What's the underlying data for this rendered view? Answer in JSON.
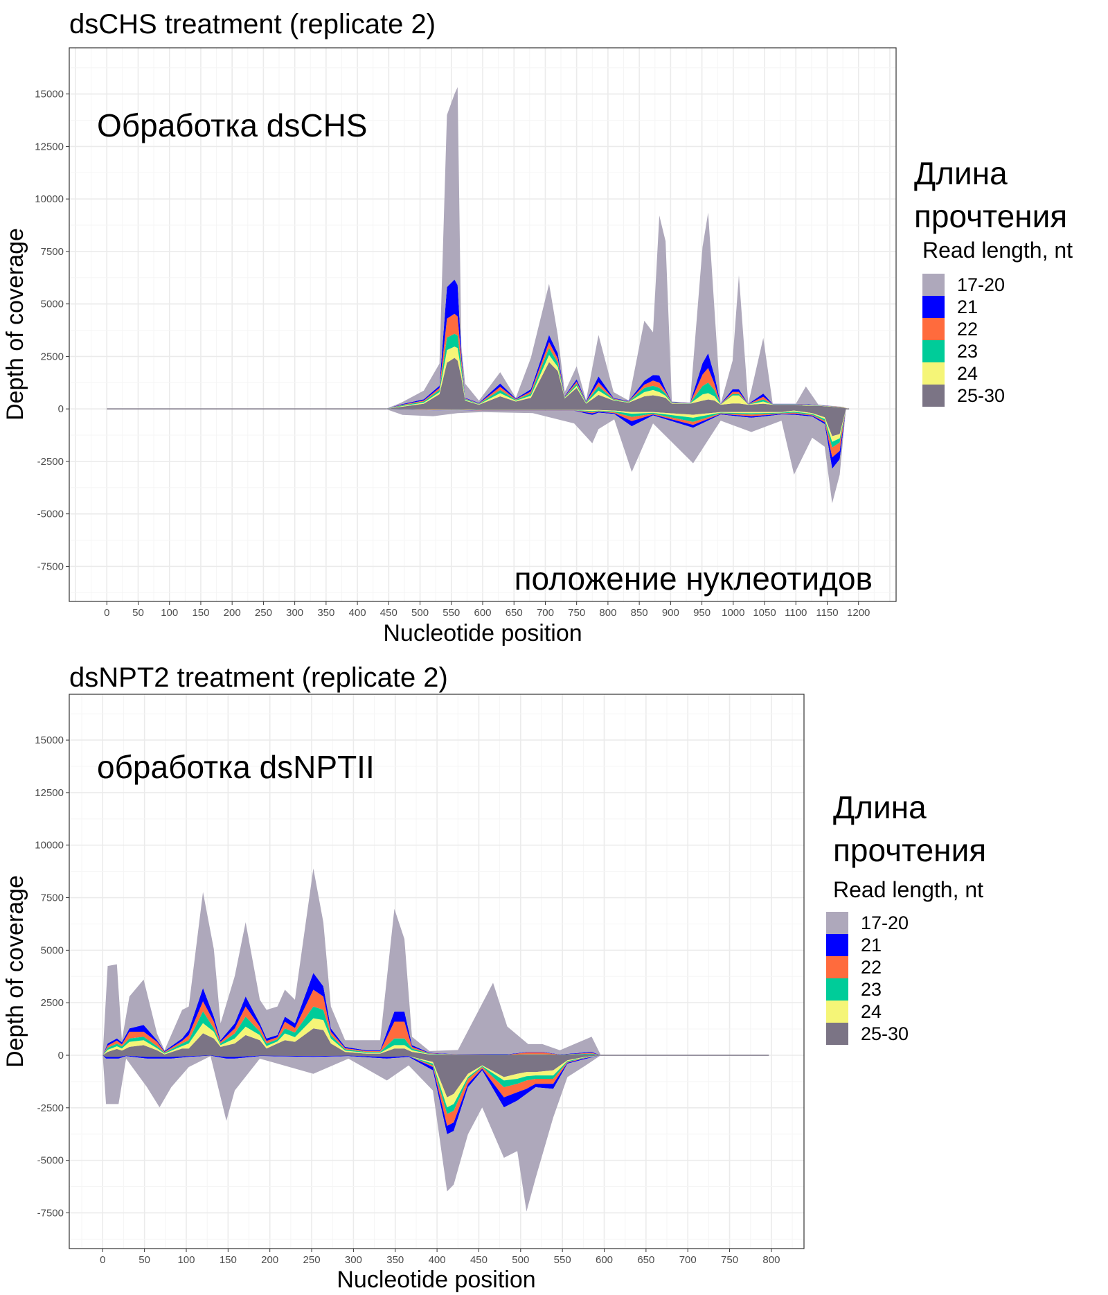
{
  "chart_data": [
    {
      "type": "area",
      "stacked": true,
      "title": "dsCHS treatment (replicate 2)",
      "annotation_top": "Обработка dsCHS",
      "annotation_bottom": "положение нуклеотидов",
      "xlabel": "Nucleotide position",
      "ylabel": "Depth of coverage",
      "xlim": [
        -60,
        1260
      ],
      "ylim": [
        -9170,
        17200
      ],
      "x_ticks": [
        "0",
        "50",
        "100",
        "150",
        "200",
        "250",
        "300",
        "350",
        "400",
        "450",
        "500",
        "550",
        "600",
        "650",
        "700",
        "750",
        "800",
        "850",
        "900",
        "950",
        "1000",
        "1050",
        "1100",
        "1150",
        "1200"
      ],
      "y_ticks": [
        "15000",
        "12500",
        "10000",
        "7500",
        "5000",
        "2500",
        "0",
        "-2500",
        "-5000",
        "-7500"
      ],
      "grid": true,
      "legend": {
        "title_ru_1": "Длина",
        "title_ru_2": "прочтения",
        "title": "Read length, nt",
        "position": "right",
        "entries": [
          "17-20",
          "21",
          "22",
          "23",
          "24",
          "25-30"
        ]
      },
      "columns": [
        "position",
        "17-20",
        "21",
        "22",
        "23",
        "24",
        "25-30"
      ],
      "plus_strand": [
        [
          0,
          0,
          0,
          0,
          0,
          0,
          0
        ],
        [
          445,
          0,
          0,
          0,
          0,
          0,
          0
        ],
        [
          470,
          80,
          30,
          30,
          30,
          30,
          100
        ],
        [
          506,
          410,
          60,
          50,
          50,
          50,
          250
        ],
        [
          531,
          1060,
          100,
          100,
          100,
          100,
          700
        ],
        [
          543,
          8200,
          1500,
          900,
          600,
          600,
          2200
        ],
        [
          555,
          8840,
          1630,
          950,
          610,
          540,
          2430
        ],
        [
          560,
          9430,
          1500,
          900,
          600,
          600,
          2300
        ],
        [
          566,
          300,
          300,
          300,
          300,
          300,
          1500
        ],
        [
          572,
          670,
          30,
          30,
          40,
          40,
          390
        ],
        [
          594,
          105,
          25,
          20,
          20,
          20,
          200
        ],
        [
          628,
          540,
          160,
          150,
          150,
          150,
          600
        ],
        [
          653,
          40,
          30,
          30,
          40,
          40,
          350
        ],
        [
          677,
          1490,
          110,
          100,
          100,
          100,
          530
        ],
        [
          706,
          2440,
          340,
          280,
          330,
          340,
          2230
        ],
        [
          720,
          850,
          250,
          200,
          200,
          200,
          1800
        ],
        [
          731,
          180,
          30,
          30,
          30,
          30,
          500
        ],
        [
          750,
          620,
          110,
          100,
          100,
          100,
          1000
        ],
        [
          765,
          30,
          30,
          30,
          30,
          30,
          250
        ],
        [
          785,
          1970,
          280,
          200,
          200,
          200,
          670
        ],
        [
          809,
          280,
          30,
          30,
          30,
          30,
          400
        ],
        [
          833,
          20,
          20,
          20,
          20,
          20,
          300
        ],
        [
          858,
          2860,
          190,
          150,
          200,
          200,
          600
        ],
        [
          872,
          2035,
          265,
          250,
          200,
          250,
          650
        ],
        [
          882,
          7610,
          350,
          250,
          200,
          200,
          600
        ],
        [
          892,
          7060,
          100,
          100,
          100,
          100,
          530
        ],
        [
          902,
          20,
          20,
          20,
          20,
          20,
          250
        ],
        [
          931,
          10,
          10,
          10,
          10,
          10,
          250
        ],
        [
          951,
          5540,
          540,
          550,
          400,
          300,
          390
        ],
        [
          960,
          6700,
          700,
          700,
          500,
          300,
          450
        ],
        [
          970,
          3140,
          400,
          300,
          300,
          200,
          400
        ],
        [
          980,
          10,
          10,
          10,
          10,
          10,
          200
        ],
        [
          999,
          1360,
          130,
          110,
          60,
          380,
          260
        ],
        [
          1009,
          5430,
          130,
          110,
          60,
          380,
          260
        ],
        [
          1024,
          10,
          10,
          10,
          10,
          10,
          200
        ],
        [
          1048,
          2650,
          150,
          130,
          100,
          100,
          250
        ],
        [
          1063,
          10,
          10,
          10,
          10,
          10,
          200
        ],
        [
          1100,
          10,
          10,
          10,
          10,
          10,
          200
        ],
        [
          1116,
          840,
          20,
          20,
          20,
          20,
          150
        ],
        [
          1136,
          10,
          10,
          10,
          10,
          10,
          150
        ],
        [
          1175,
          10,
          0,
          10,
          10,
          10,
          60
        ],
        [
          1185,
          0,
          0,
          0,
          0,
          0,
          0
        ]
      ],
      "minus_strand": [
        [
          0,
          0,
          0,
          0,
          0,
          0,
          0
        ],
        [
          445,
          0,
          0,
          0,
          0,
          0,
          0
        ],
        [
          472,
          255,
          5,
          5,
          5,
          5,
          10
        ],
        [
          521,
          280,
          10,
          20,
          10,
          10,
          20
        ],
        [
          560,
          140,
          10,
          10,
          10,
          10,
          20
        ],
        [
          600,
          60,
          10,
          10,
          10,
          10,
          50
        ],
        [
          680,
          110,
          10,
          10,
          10,
          10,
          50
        ],
        [
          746,
          600,
          10,
          10,
          10,
          10,
          50
        ],
        [
          775,
          1350,
          80,
          60,
          50,
          50,
          50
        ],
        [
          785,
          780,
          40,
          30,
          30,
          30,
          50
        ],
        [
          810,
          260,
          40,
          40,
          40,
          40,
          80
        ],
        [
          838,
          2170,
          250,
          200,
          150,
          80,
          150
        ],
        [
          872,
          380,
          40,
          40,
          40,
          40,
          150
        ],
        [
          936,
          1690,
          140,
          140,
          200,
          140,
          280
        ],
        [
          980,
          290,
          30,
          30,
          30,
          30,
          150
        ],
        [
          1029,
          680,
          70,
          80,
          60,
          60,
          150
        ],
        [
          1077,
          290,
          30,
          30,
          30,
          30,
          150
        ],
        [
          1097,
          2850,
          50,
          50,
          50,
          50,
          80
        ],
        [
          1126,
          1010,
          40,
          40,
          40,
          40,
          200
        ],
        [
          1146,
          1080,
          80,
          80,
          80,
          80,
          400
        ],
        [
          1158,
          1650,
          540,
          470,
          270,
          270,
          1300
        ],
        [
          1170,
          730,
          400,
          400,
          200,
          200,
          1200
        ],
        [
          1180,
          0,
          0,
          0,
          0,
          0,
          0
        ]
      ]
    },
    {
      "type": "area",
      "stacked": true,
      "title": "dsNPT2 treatment (replicate 2)",
      "annotation_top": "обработка dsNPTII",
      "xlabel": "Nucleotide position",
      "ylabel": "Depth of coverage",
      "xlim": [
        -40,
        839
      ],
      "ylim": [
        -9200,
        17180
      ],
      "x_ticks": [
        "0",
        "50",
        "100",
        "150",
        "200",
        "250",
        "300",
        "350",
        "400",
        "450",
        "500",
        "550",
        "600",
        "650",
        "700",
        "750",
        "800"
      ],
      "y_ticks": [
        "15000",
        "12500",
        "10000",
        "7500",
        "5000",
        "2500",
        "0",
        "-2500",
        "-5000",
        "-7500"
      ],
      "grid": true,
      "legend": {
        "title_ru_1": "Длина",
        "title_ru_2": "прочтения",
        "title": "Read length, nt",
        "position": "right",
        "entries": [
          "17-20",
          "21",
          "22",
          "23",
          "24",
          "25-30"
        ]
      },
      "columns": [
        "position",
        "17-20",
        "21",
        "22",
        "23",
        "24",
        "25-30"
      ],
      "plus_strand": [
        [
          0,
          0,
          0,
          0,
          0,
          0,
          0
        ],
        [
          6,
          3690,
          100,
          100,
          100,
          100,
          160
        ],
        [
          17,
          3530,
          100,
          150,
          120,
          130,
          300
        ],
        [
          23,
          100,
          100,
          100,
          100,
          100,
          220
        ],
        [
          32,
          1520,
          160,
          320,
          160,
          240,
          400
        ],
        [
          49,
          2160,
          320,
          240,
          160,
          240,
          480
        ],
        [
          65,
          320,
          80,
          200,
          100,
          100,
          240
        ],
        [
          74,
          40,
          40,
          40,
          40,
          40,
          40
        ],
        [
          95,
          1360,
          120,
          120,
          120,
          120,
          320
        ],
        [
          103,
          1120,
          240,
          240,
          160,
          240,
          320
        ],
        [
          120,
          4570,
          630,
          480,
          560,
          480,
          1050
        ],
        [
          133,
          3210,
          240,
          320,
          160,
          320,
          800
        ],
        [
          141,
          800,
          80,
          80,
          80,
          80,
          400
        ],
        [
          158,
          2250,
          240,
          240,
          240,
          240,
          560
        ],
        [
          171,
          3530,
          480,
          480,
          480,
          400,
          960
        ],
        [
          188,
          1120,
          160,
          240,
          160,
          240,
          720
        ],
        [
          196,
          1360,
          120,
          120,
          120,
          120,
          320
        ],
        [
          209,
          1360,
          100,
          100,
          100,
          100,
          560
        ],
        [
          218,
          1280,
          240,
          320,
          240,
          320,
          720
        ],
        [
          230,
          1120,
          220,
          220,
          220,
          220,
          640
        ],
        [
          252,
          4970,
          800,
          800,
          560,
          480,
          1280
        ],
        [
          264,
          3050,
          480,
          640,
          480,
          480,
          1200
        ],
        [
          273,
          1040,
          160,
          160,
          160,
          240,
          560
        ],
        [
          290,
          320,
          60,
          60,
          60,
          60,
          160
        ],
        [
          315,
          480,
          40,
          40,
          40,
          40,
          80
        ],
        [
          332,
          480,
          40,
          40,
          40,
          40,
          80
        ],
        [
          349,
          4890,
          480,
          800,
          320,
          160,
          320
        ],
        [
          361,
          3450,
          480,
          800,
          320,
          160,
          320
        ],
        [
          370,
          400,
          80,
          80,
          80,
          80,
          160
        ],
        [
          391,
          80,
          20,
          20,
          20,
          20,
          40
        ],
        [
          425,
          200,
          10,
          10,
          10,
          0,
          20
        ],
        [
          467,
          3400,
          20,
          10,
          10,
          0,
          10
        ],
        [
          484,
          1320,
          20,
          10,
          10,
          0,
          10
        ],
        [
          509,
          370,
          20,
          100,
          20,
          0,
          20
        ],
        [
          526,
          370,
          20,
          100,
          20,
          0,
          20
        ],
        [
          547,
          200,
          10,
          10,
          10,
          0,
          10
        ],
        [
          585,
          720,
          40,
          40,
          40,
          0,
          40
        ],
        [
          596,
          0,
          0,
          0,
          0,
          0,
          0
        ]
      ],
      "minus_strand": [
        [
          0,
          0,
          0,
          0,
          0,
          0,
          0
        ],
        [
          4,
          2160,
          80,
          0,
          0,
          0,
          80
        ],
        [
          19,
          2160,
          80,
          0,
          0,
          0,
          80
        ],
        [
          28,
          120,
          20,
          0,
          0,
          0,
          20
        ],
        [
          53,
          1360,
          80,
          0,
          0,
          0,
          80
        ],
        [
          68,
          2320,
          80,
          0,
          0,
          0,
          80
        ],
        [
          82,
          1360,
          80,
          0,
          0,
          0,
          80
        ],
        [
          103,
          480,
          40,
          0,
          0,
          0,
          40
        ],
        [
          129,
          20,
          10,
          0,
          0,
          0,
          10
        ],
        [
          148,
          2960,
          80,
          0,
          0,
          0,
          80
        ],
        [
          158,
          1520,
          80,
          0,
          0,
          0,
          80
        ],
        [
          188,
          120,
          20,
          0,
          0,
          0,
          20
        ],
        [
          252,
          800,
          40,
          0,
          0,
          0,
          40
        ],
        [
          294,
          120,
          20,
          0,
          0,
          0,
          20
        ],
        [
          340,
          1040,
          80,
          0,
          0,
          0,
          80
        ],
        [
          366,
          400,
          40,
          0,
          0,
          0,
          40
        ],
        [
          395,
          960,
          160,
          80,
          80,
          80,
          320
        ],
        [
          412,
          2720,
          400,
          560,
          320,
          480,
          2000
        ],
        [
          420,
          2560,
          400,
          560,
          320,
          480,
          1840
        ],
        [
          437,
          2240,
          160,
          240,
          80,
          160,
          880
        ],
        [
          454,
          1760,
          80,
          80,
          40,
          40,
          480
        ],
        [
          480,
          2400,
          480,
          480,
          320,
          160,
          1040
        ],
        [
          496,
          2400,
          400,
          400,
          240,
          240,
          880
        ],
        [
          507,
          5600,
          240,
          400,
          200,
          200,
          800
        ],
        [
          518,
          4320,
          160,
          240,
          160,
          160,
          800
        ],
        [
          539,
          1360,
          240,
          240,
          160,
          240,
          720
        ],
        [
          556,
          640,
          40,
          40,
          40,
          40,
          240
        ],
        [
          577,
          320,
          40,
          20,
          20,
          20,
          80
        ],
        [
          596,
          0,
          0,
          0,
          0,
          0,
          0
        ]
      ]
    }
  ],
  "series_colors": {
    "17-20": "#aea8bb",
    "21": "#0000ff",
    "22": "#ff6b3d",
    "23": "#00cc99",
    "24": "#f5f577",
    "25-30": "#7b7485"
  }
}
